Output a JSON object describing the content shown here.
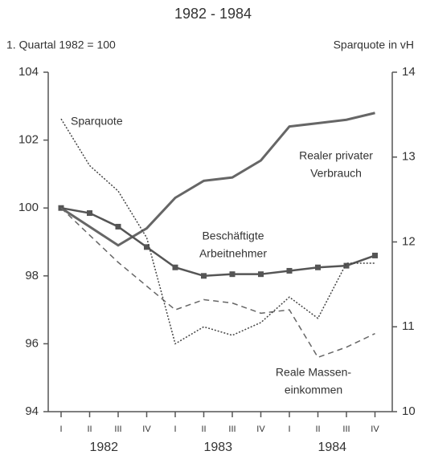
{
  "chart_data": {
    "type": "line",
    "title": "1982 - 1984",
    "ylabel": "1. Quartal 1982 = 100",
    "y2label": "Sparquote in vH",
    "categories": [
      "I",
      "II",
      "III",
      "IV",
      "I",
      "II",
      "III",
      "IV",
      "I",
      "II",
      "III",
      "IV"
    ],
    "years": [
      "1982",
      "1983",
      "1984"
    ],
    "ylim": [
      94,
      104
    ],
    "yticks": [
      94,
      96,
      98,
      100,
      102,
      104
    ],
    "y2lim": [
      10,
      14
    ],
    "y2ticks": [
      10,
      11,
      12,
      13,
      14
    ],
    "series": [
      {
        "name": [
          "Realer privater",
          "Verbrauch"
        ],
        "color": "#666",
        "style": "solid",
        "values": [
          100,
          99.45,
          98.9,
          99.4,
          100.3,
          100.8,
          100.9,
          101.4,
          102.4,
          102.5,
          102.6,
          102.8
        ]
      },
      {
        "name": [
          "Beschäftigte",
          "Arbeitnehmer"
        ],
        "color": "#555",
        "style": "squares",
        "values": [
          100,
          99.85,
          99.45,
          98.85,
          98.25,
          98.0,
          98.05,
          98.05,
          98.15,
          98.25,
          98.3,
          98.6
        ]
      },
      {
        "name": [
          "Reale Massen-",
          "einkommen"
        ],
        "color": "#666",
        "style": "dashed",
        "values": [
          100,
          99.2,
          98.4,
          97.7,
          97.0,
          97.3,
          97.2,
          96.9,
          97.0,
          95.6,
          95.9,
          96.3
        ]
      },
      {
        "name": [
          "Sparquote"
        ],
        "color": "#444",
        "style": "dotted",
        "axis": "y2",
        "values": [
          13.45,
          12.9,
          12.6,
          12.05,
          10.8,
          11.0,
          10.9,
          11.05,
          11.35,
          11.1,
          11.75,
          11.75
        ]
      }
    ]
  }
}
